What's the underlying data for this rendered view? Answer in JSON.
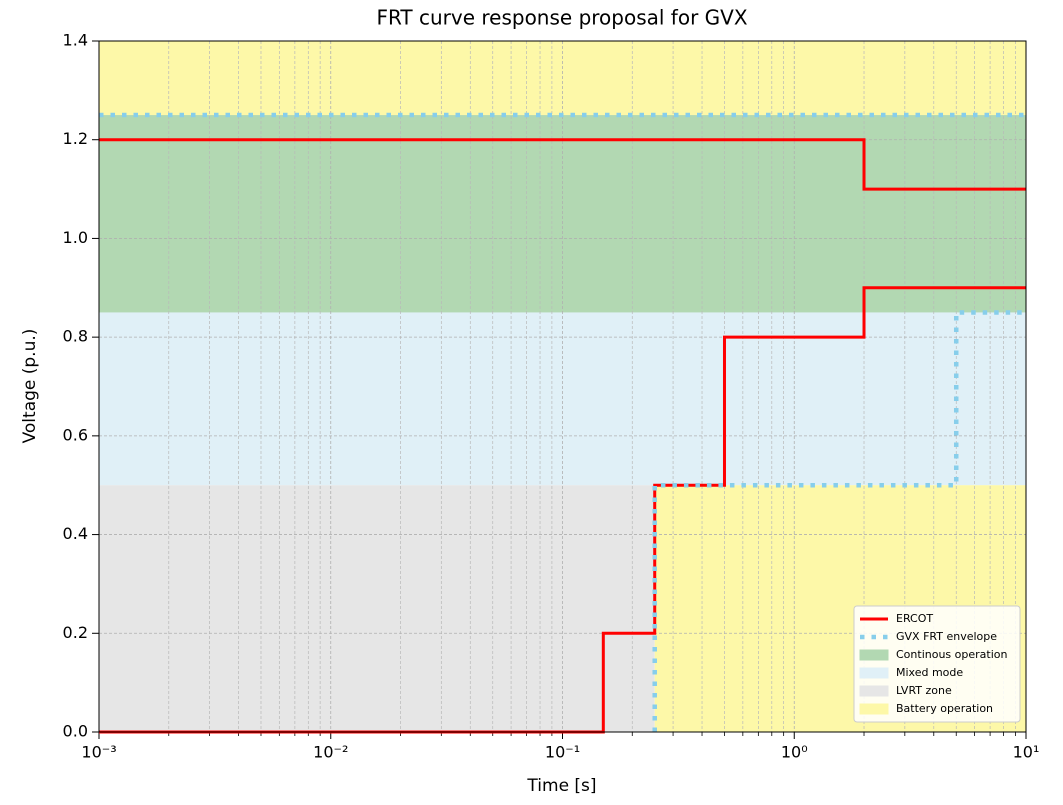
{
  "chart_data": {
    "type": "line",
    "title": "FRT curve response proposal for GVX",
    "xlabel": "Time [s]",
    "ylabel": "Voltage (p.u.)",
    "xscale": "log",
    "xlim": [
      0.001,
      10
    ],
    "ylim": [
      0,
      1.4
    ],
    "xticks": [
      {
        "value": 0.001,
        "label": "10⁻³"
      },
      {
        "value": 0.01,
        "label": "10⁻²"
      },
      {
        "value": 0.1,
        "label": "10⁻¹"
      },
      {
        "value": 1,
        "label": "10⁰"
      },
      {
        "value": 10,
        "label": "10¹"
      }
    ],
    "yticks": [
      {
        "value": 0,
        "label": "0.0"
      },
      0.2,
      0.4,
      0.6,
      0.8,
      {
        "value": 1,
        "label": "1.0"
      },
      1.2,
      1.4
    ],
    "grid": true,
    "minor_grid": true,
    "legend": "lower right",
    "series": [
      {
        "name": "ERCOT",
        "color": "#ff0000",
        "style": "solid",
        "x": [
          0.001,
          0.15,
          0.15,
          0.25,
          0.25,
          0.5,
          0.5,
          2,
          2,
          10,
          10,
          0.001,
          2,
          2,
          10
        ],
        "values": [
          0,
          0,
          0.2,
          0.2,
          0.5,
          0.5,
          0.8,
          0.8,
          0.9,
          0.9,
          null,
          1.2,
          1.2,
          1.1,
          1.1
        ]
      },
      {
        "name": "GVX FRT envelope",
        "color": "#87ceeb",
        "style": "dotted",
        "x": [
          0.25,
          0.25,
          5,
          5,
          10,
          10,
          0.001,
          10
        ],
        "values": [
          0,
          0.5,
          0.5,
          0.85,
          0.85,
          null,
          1.25,
          1.25
        ]
      }
    ],
    "regions": [
      {
        "name": "Continous operation",
        "color": "#b2d8b2",
        "rects": [
          {
            "x": [
              0.001,
              10
            ],
            "y": [
              0.85,
              1.25
            ]
          }
        ]
      },
      {
        "name": "Mixed mode",
        "color": "#e0f0f7",
        "rects": [
          {
            "x": [
              0.001,
              10
            ],
            "y": [
              0.5,
              0.85
            ]
          }
        ]
      },
      {
        "name": "LVRT zone",
        "color": "#e6e6e6",
        "rects": [
          {
            "x": [
              0.001,
              0.25
            ],
            "y": [
              0,
              0.5
            ]
          }
        ]
      },
      {
        "name": "Battery operation",
        "color": "#fdf8a8",
        "rects": [
          {
            "x": [
              0.001,
              10
            ],
            "y": [
              1.25,
              1.4
            ]
          },
          {
            "x": [
              0.25,
              10
            ],
            "y": [
              0,
              0.5
            ]
          }
        ]
      }
    ]
  }
}
